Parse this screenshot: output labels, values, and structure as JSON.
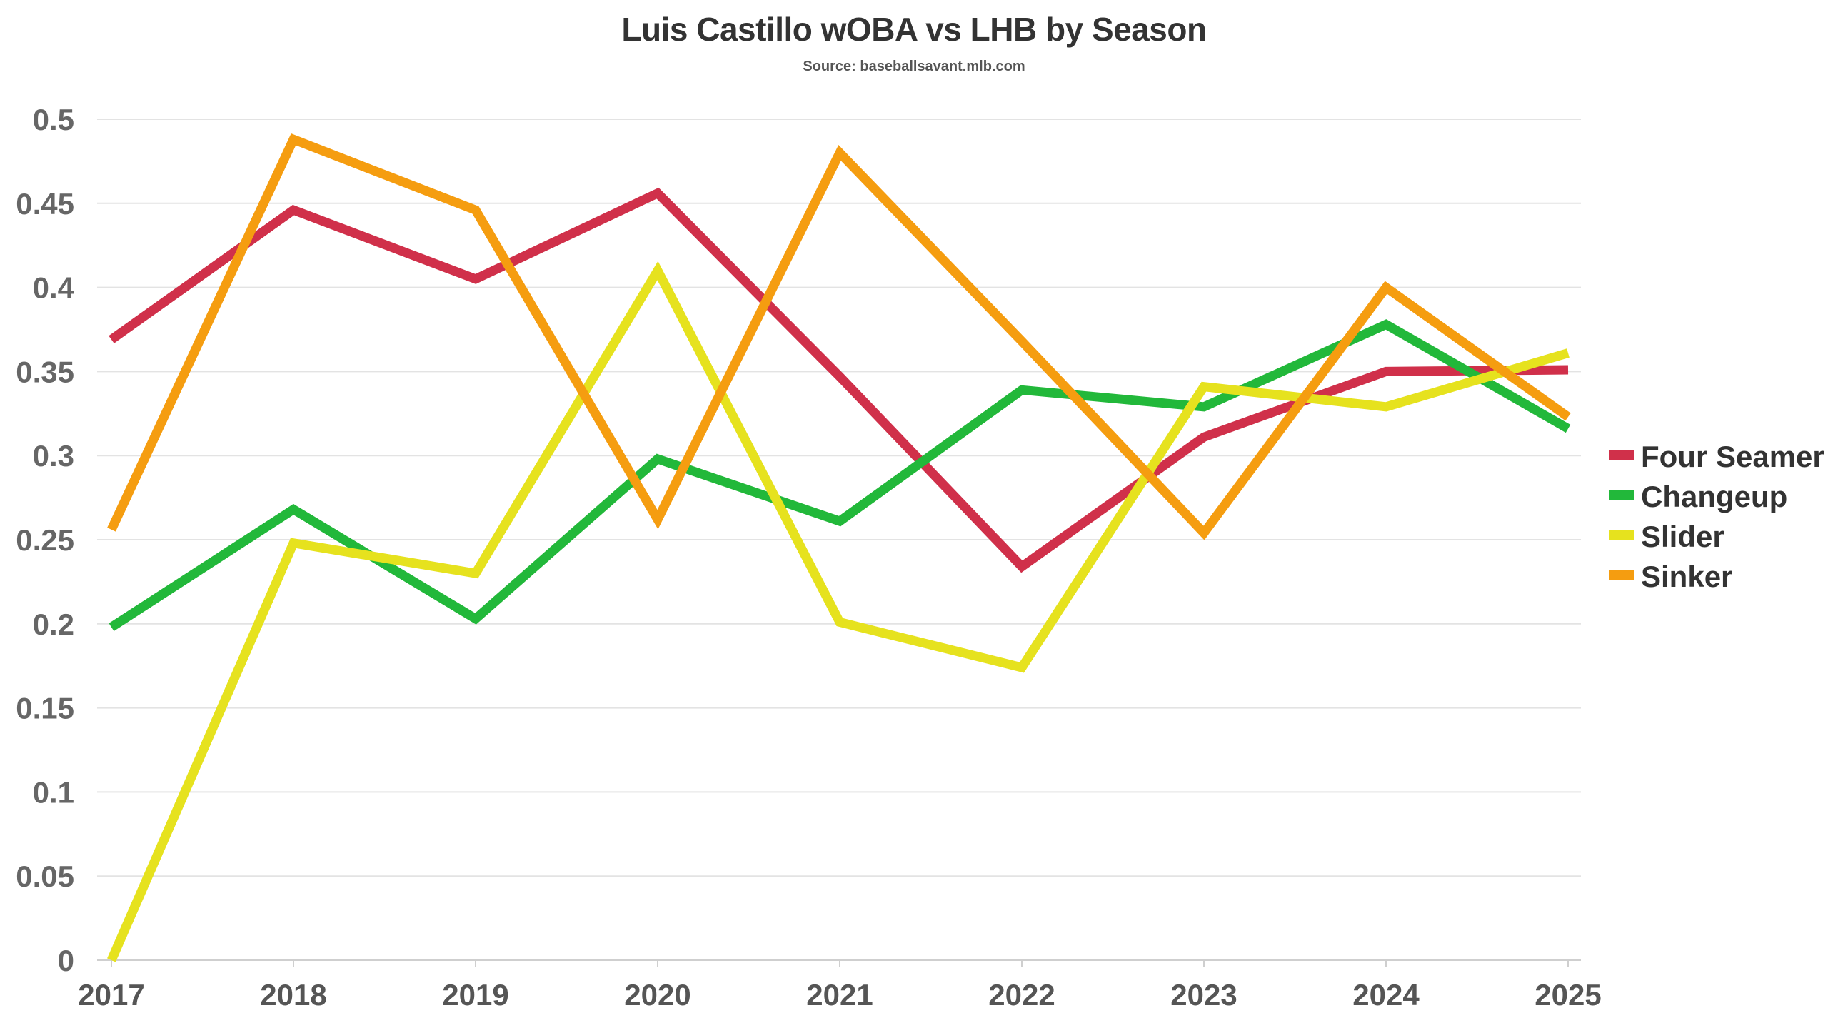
{
  "chart_data": {
    "type": "line",
    "title": "Luis Castillo wOBA vs LHB by Season",
    "subtitle": "Source: baseballsavant.mlb.com",
    "xlabel": "",
    "ylabel": "",
    "x": [
      "2017",
      "2018",
      "2019",
      "2020",
      "2021",
      "2022",
      "2023",
      "2024",
      "2025"
    ],
    "ylim": [
      0,
      0.5
    ],
    "yticks": [
      "0",
      "0.05",
      "0.1",
      "0.15",
      "0.2",
      "0.25",
      "0.3",
      "0.35",
      "0.4",
      "0.45",
      "0.5"
    ],
    "grid": "horizontal",
    "legend_position": "right",
    "series": [
      {
        "name": "Four Seamer",
        "color": "#d0304a",
        "values": [
          0.369,
          0.446,
          0.405,
          0.456,
          0.347,
          0.234,
          0.311,
          0.35,
          0.351
        ]
      },
      {
        "name": "Changeup",
        "color": "#22b83a",
        "values": [
          0.198,
          0.268,
          0.203,
          0.298,
          0.261,
          0.339,
          0.329,
          0.378,
          0.316
        ]
      },
      {
        "name": "Slider",
        "color": "#e6e21e",
        "values": [
          0.0,
          0.248,
          0.23,
          0.41,
          0.201,
          0.174,
          0.341,
          0.329,
          0.361
        ]
      },
      {
        "name": "Sinker",
        "color": "#f59d10",
        "values": [
          0.256,
          0.488,
          0.446,
          0.262,
          0.48,
          0.368,
          0.254,
          0.4,
          0.323
        ]
      }
    ]
  }
}
